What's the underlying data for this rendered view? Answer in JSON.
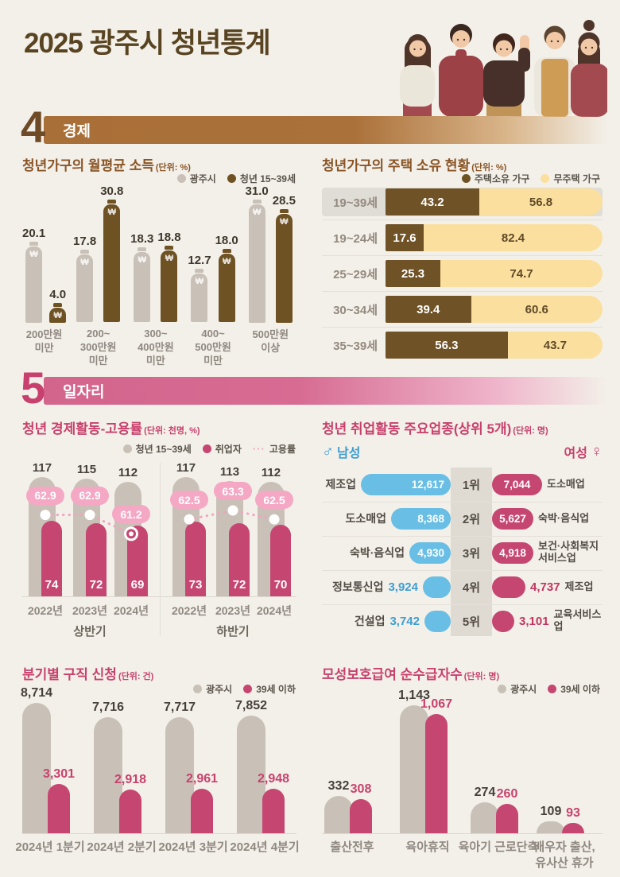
{
  "page": {
    "title": "2025 광주시 청년통계"
  },
  "sections": {
    "economy": {
      "number": "4",
      "label": "경제"
    },
    "jobs": {
      "number": "5",
      "label": "일자리"
    }
  },
  "icons": {
    "male": "♂",
    "female": "♀",
    "won": "₩",
    "rate_dots": "···"
  },
  "colors": {
    "background": "#f3f0e9",
    "title_brown": "#594422",
    "section_brown": "#aa6f38",
    "chart_title_brown": "#8a5526",
    "gray_bar": "#c9c1b7",
    "brown_bar": "#6f5224",
    "housing_own": "#6f5226",
    "housing_none": "#fbdf9f",
    "pink_accent": "#c8416e",
    "pink_bar": "#c64672",
    "badge_pink": "#f4a8c4",
    "male_blue": "#68bee5"
  },
  "chart_data": [
    {
      "id": "income",
      "type": "bar",
      "title": "청년가구의 월평균 소득",
      "unit": "(단위: %)",
      "categories": [
        "200만원\n미만",
        "200~\n300만원\n미만",
        "300~\n400만원\n미만",
        "400~\n500만원\n미만",
        "500만원\n이상"
      ],
      "series": [
        {
          "name": "광주시",
          "color": "#c9c1b7",
          "values": [
            20.1,
            17.8,
            18.3,
            12.7,
            31.0
          ]
        },
        {
          "name": "청년 15~39세",
          "color": "#6f5224",
          "values": [
            4.0,
            30.8,
            18.8,
            18.0,
            28.5
          ]
        }
      ],
      "ylim": [
        0,
        35
      ],
      "legend_position": "top-right",
      "grid": false
    },
    {
      "id": "housing",
      "type": "bar",
      "title": "청년가구의 주택 소유 현황",
      "unit": "(단위: %)",
      "orientation": "horizontal-stacked",
      "categories": [
        "19~39세",
        "19~24세",
        "25~29세",
        "30~34세",
        "35~39세"
      ],
      "series": [
        {
          "name": "주택소유 가구",
          "color": "#6f5226",
          "values": [
            43.2,
            17.6,
            25.3,
            39.4,
            56.3
          ]
        },
        {
          "name": "무주택 가구",
          "color": "#fbdf9f",
          "values": [
            56.8,
            82.4,
            74.7,
            60.6,
            43.7
          ]
        }
      ],
      "highlight_row": 0,
      "legend_position": "top-right"
    },
    {
      "id": "employment",
      "type": "bar",
      "title": "청년 경제활동-고용률",
      "unit": "(단위: 천명, %)",
      "legend": [
        "청년 15~39세",
        "취업자",
        "고용률"
      ],
      "groups": [
        {
          "label": "상반기",
          "categories": [
            "2022년",
            "2023년",
            "2024년"
          ],
          "population": [
            117,
            115,
            112
          ],
          "employed": [
            74,
            72,
            69
          ],
          "rate": [
            62.9,
            62.9,
            61.2
          ]
        },
        {
          "label": "하반기",
          "categories": [
            "2022년",
            "2023년",
            "2024년"
          ],
          "population": [
            117,
            113,
            112
          ],
          "employed": [
            73,
            72,
            70
          ],
          "rate": [
            62.5,
            63.3,
            62.5
          ]
        }
      ],
      "legend_position": "top-right"
    },
    {
      "id": "industry",
      "type": "bar",
      "title": "청년 취업활동 주요업종(상위 5개)",
      "unit": "(단위: 명)",
      "orientation": "butterfly",
      "male_label": "남성",
      "female_label": "여성",
      "rows": [
        {
          "rank": "1위",
          "male_label": "제조업",
          "male_value": 12617,
          "female_value": 7044,
          "female_label": "도소매업"
        },
        {
          "rank": "2위",
          "male_label": "도소매업",
          "male_value": 8368,
          "female_value": 5627,
          "female_label": "숙박·음식업"
        },
        {
          "rank": "3위",
          "male_label": "숙박·음식업",
          "male_value": 4930,
          "female_value": 4918,
          "female_label": "보건·사회복지 서비스업"
        },
        {
          "rank": "4위",
          "male_label": "정보통신업",
          "male_value": 3924,
          "female_value": 4737,
          "female_label": "제조업"
        },
        {
          "rank": "5위",
          "male_label": "건설업",
          "male_value": 3742,
          "female_value": 3101,
          "female_label": "교육서비스업"
        }
      ]
    },
    {
      "id": "quarterly",
      "type": "bar",
      "title": "분기별 구직 신청",
      "unit": "(단위: 건)",
      "categories": [
        "2024년 1분기",
        "2024년 2분기",
        "2024년 3분기",
        "2024년 4분기"
      ],
      "series": [
        {
          "name": "광주시",
          "color": "#c9c1b7",
          "values": [
            8714,
            7716,
            7717,
            7852
          ]
        },
        {
          "name": "39세 이하",
          "color": "#c64672",
          "values": [
            3301,
            2918,
            2961,
            2948
          ]
        }
      ],
      "legend_position": "top-right",
      "grid": false
    },
    {
      "id": "maternity",
      "type": "bar",
      "title": "모성보호급여 순수급자수",
      "unit": "(단위: 명)",
      "categories": [
        "출산전후",
        "육아휴직",
        "육아기 근로단축",
        "배우자 출산,\n유사산 휴가"
      ],
      "series": [
        {
          "name": "광주시",
          "color": "#c9c1b7",
          "values": [
            332,
            1143,
            274,
            109
          ]
        },
        {
          "name": "39세 이하",
          "color": "#c64672",
          "values": [
            308,
            1067,
            260,
            93
          ]
        }
      ],
      "legend_position": "top-right",
      "grid": false
    }
  ]
}
